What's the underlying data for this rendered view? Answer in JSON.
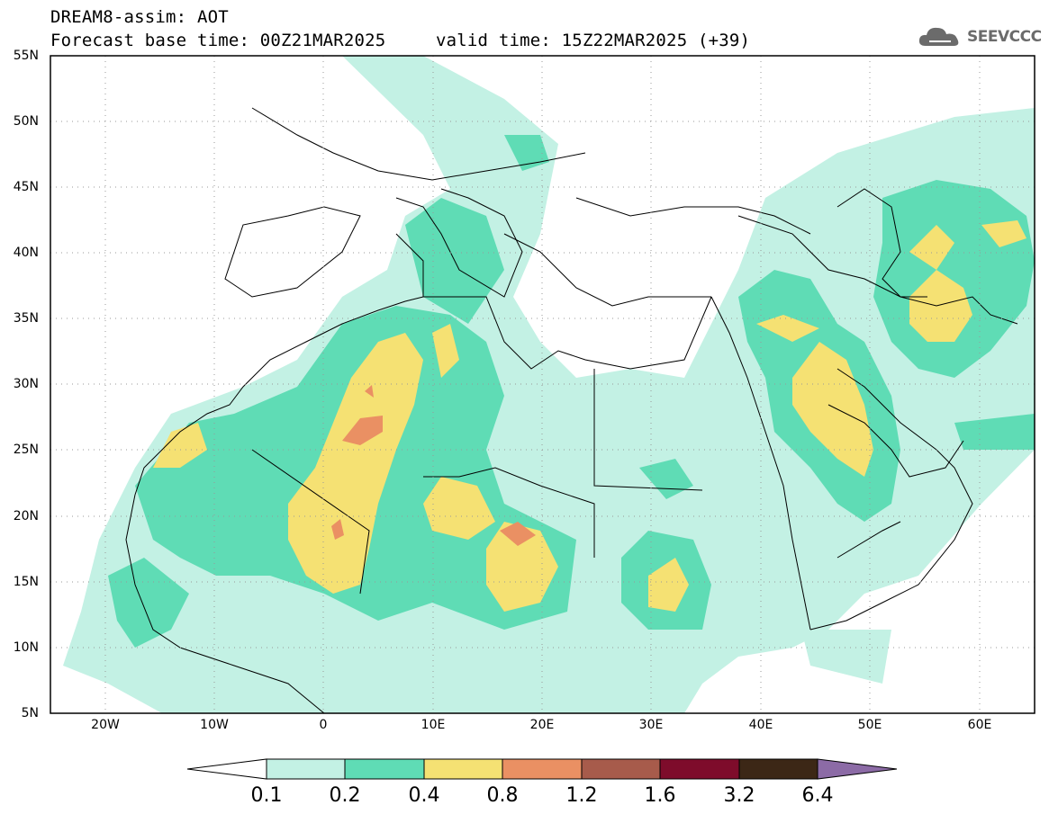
{
  "title": {
    "line1": "DREAM8-assim: AOT",
    "line2": "Forecast base time: 00Z21MAR2025",
    "valid": "valid time: 15Z22MAR2025 (+39)"
  },
  "logo": {
    "text": "SEEVCCC",
    "icon": "cloud-icon"
  },
  "map": {
    "lat_range": [
      5,
      55
    ],
    "lon_range": [
      -25,
      65
    ],
    "lat_ticks": [
      "55N",
      "50N",
      "45N",
      "40N",
      "35N",
      "30N",
      "25N",
      "20N",
      "15N",
      "10N",
      "5N"
    ],
    "lon_ticks": [
      "20W",
      "10W",
      "0",
      "10E",
      "20E",
      "30E",
      "40E",
      "50E",
      "60E"
    ],
    "grid": "dotted"
  },
  "colorbar": {
    "labels": [
      "0.1",
      "0.2",
      "0.4",
      "0.8",
      "1.2",
      "1.6",
      "3.2",
      "6.4"
    ],
    "colors": [
      "#ffffff",
      "#c3f1e4",
      "#5fdcb5",
      "#f5e173",
      "#ea9063",
      "#a75b4b",
      "#7e0c2b",
      "#3c2716",
      "#8c6ba6"
    ]
  }
}
